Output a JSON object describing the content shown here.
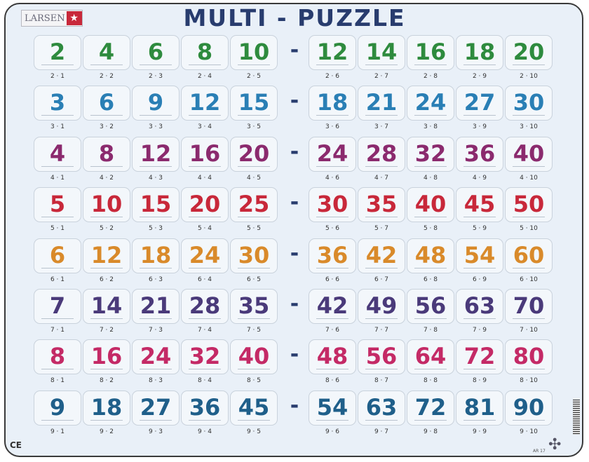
{
  "brand": {
    "name": "LARSEN",
    "mark": "★"
  },
  "title": "MULTI - PUZZLE",
  "separator": "-",
  "footer": {
    "ce": "CE",
    "code": "AR 17"
  },
  "rows": [
    {
      "color": "#2e8b3e",
      "values": [
        "2",
        "4",
        "6",
        "8",
        "10",
        "12",
        "14",
        "16",
        "18",
        "20"
      ],
      "labels": [
        "2 · 1",
        "2 · 2",
        "2 · 3",
        "2 · 4",
        "2 · 5",
        "2 · 6",
        "2 · 7",
        "2 · 8",
        "2 · 9",
        "2 · 10"
      ]
    },
    {
      "color": "#2a7fb5",
      "values": [
        "3",
        "6",
        "9",
        "12",
        "15",
        "18",
        "21",
        "24",
        "27",
        "30"
      ],
      "labels": [
        "3 · 1",
        "3 · 2",
        "3 · 3",
        "3 · 4",
        "3 · 5",
        "3 · 6",
        "3 · 7",
        "3 · 8",
        "3 · 9",
        "3 · 10"
      ]
    },
    {
      "color": "#8b2a6e",
      "values": [
        "4",
        "8",
        "12",
        "16",
        "20",
        "24",
        "28",
        "32",
        "36",
        "40"
      ],
      "labels": [
        "4 · 1",
        "4 · 2",
        "4 · 3",
        "4 · 4",
        "4 · 5",
        "4 · 6",
        "4 · 7",
        "4 · 8",
        "4 · 9",
        "4 · 10"
      ]
    },
    {
      "color": "#c8283a",
      "values": [
        "5",
        "10",
        "15",
        "20",
        "25",
        "30",
        "35",
        "40",
        "45",
        "50"
      ],
      "labels": [
        "5 · 1",
        "5 · 2",
        "5 · 3",
        "5 · 4",
        "5 · 5",
        "5 · 6",
        "5 · 7",
        "5 · 8",
        "5 · 9",
        "5 · 10"
      ]
    },
    {
      "color": "#d98a2a",
      "values": [
        "6",
        "12",
        "18",
        "24",
        "30",
        "36",
        "42",
        "48",
        "54",
        "60"
      ],
      "labels": [
        "6 · 1",
        "6 · 2",
        "6 · 3",
        "6 · 4",
        "6 · 5",
        "6 · 6",
        "6 · 7",
        "6 · 8",
        "6 · 9",
        "6 · 10"
      ]
    },
    {
      "color": "#4a3a7a",
      "values": [
        "7",
        "14",
        "21",
        "28",
        "35",
        "42",
        "49",
        "56",
        "63",
        "70"
      ],
      "labels": [
        "7 · 1",
        "7 · 2",
        "7 · 3",
        "7 · 4",
        "7 · 5",
        "7 · 6",
        "7 · 7",
        "7 · 8",
        "7 · 9",
        "7 · 10"
      ]
    },
    {
      "color": "#c42a66",
      "values": [
        "8",
        "16",
        "24",
        "32",
        "40",
        "48",
        "56",
        "64",
        "72",
        "80"
      ],
      "labels": [
        "8 · 1",
        "8 · 2",
        "8 · 3",
        "8 · 4",
        "8 · 5",
        "8 · 6",
        "8 · 7",
        "8 · 8",
        "8 · 9",
        "8 · 10"
      ]
    },
    {
      "color": "#1f5f8a",
      "values": [
        "9",
        "18",
        "27",
        "36",
        "45",
        "54",
        "63",
        "72",
        "81",
        "90"
      ],
      "labels": [
        "9 · 1",
        "9 · 2",
        "9 · 3",
        "9 · 4",
        "9 · 5",
        "9 · 6",
        "9 · 7",
        "9 · 8",
        "9 · 9",
        "9 · 10"
      ]
    }
  ]
}
